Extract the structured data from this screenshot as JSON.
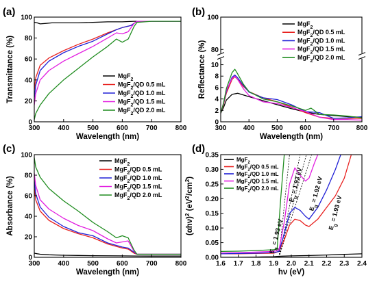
{
  "colors": {
    "MgF2": "#000000",
    "0.5": "#e8211f",
    "1.0": "#1f1fd6",
    "1.5": "#e21ee0",
    "2.0": "#1f8c1f"
  },
  "chart_data": [
    {
      "panel": "(a)",
      "type": "line",
      "xlabel": "Wavelength (nm)",
      "ylabel": "Transmittance (%)",
      "xlim": [
        300,
        800
      ],
      "ylim": [
        0,
        100
      ],
      "xticks": [
        "300",
        "400",
        "500",
        "600",
        "700",
        "800"
      ],
      "yticks": [
        "0",
        "20",
        "40",
        "60",
        "80",
        "100"
      ],
      "legend": "bottom-right",
      "series": [
        {
          "name": "MgF2",
          "label_main": "MgF",
          "label_sub": "2",
          "label_rest": "",
          "color_key": "MgF2",
          "x": [
            300,
            310,
            320,
            340,
            360,
            380,
            400,
            450,
            500,
            550,
            600,
            640,
            650,
            700,
            750,
            800
          ],
          "y": [
            95,
            94.5,
            93.5,
            94,
            94.5,
            94.5,
            94.5,
            94.5,
            95,
            95.5,
            95.5,
            96,
            96,
            96,
            96,
            96
          ]
        },
        {
          "name": "MgF2/QD 0.5 mL",
          "label_main": "MgF",
          "label_sub": "2",
          "label_rest": "/QD 0.5 mL",
          "color_key": "0.5",
          "x": [
            300,
            305,
            320,
            350,
            400,
            450,
            500,
            550,
            580,
            600,
            630,
            645,
            650,
            700,
            800
          ],
          "y": [
            30,
            42,
            54,
            61,
            68,
            74,
            79,
            85,
            88,
            90,
            92,
            95,
            96,
            96,
            96
          ]
        },
        {
          "name": "MgF2/QD 1.0 mL",
          "label_main": "MgF",
          "label_sub": "2",
          "label_rest": "/QD 1.0 mL",
          "color_key": "1.0",
          "x": [
            300,
            305,
            320,
            350,
            400,
            450,
            500,
            550,
            580,
            600,
            630,
            645,
            650,
            700,
            800
          ],
          "y": [
            22,
            35,
            49,
            58,
            66,
            72,
            77,
            84,
            88,
            90,
            92,
            95,
            96,
            96,
            96
          ]
        },
        {
          "name": "MgF2/QD 1.5 mL",
          "label_main": "MgF",
          "label_sub": "2",
          "label_rest": "/QD 1.5 mL",
          "color_key": "1.5",
          "x": [
            300,
            305,
            320,
            350,
            400,
            450,
            500,
            550,
            580,
            600,
            620,
            640,
            650,
            700,
            800
          ],
          "y": [
            16,
            27,
            40,
            49,
            58,
            65,
            72,
            80,
            85,
            84,
            86,
            94,
            96,
            96,
            96
          ]
        },
        {
          "name": "MgF2/QD 2.0 mL",
          "label_main": "MgF",
          "label_sub": "2",
          "label_rest": "/QD 2.0 mL",
          "color_key": "2.0",
          "x": [
            300,
            305,
            320,
            350,
            400,
            450,
            500,
            550,
            580,
            600,
            620,
            640,
            650,
            700,
            800
          ],
          "y": [
            2,
            8,
            16,
            27,
            40,
            51,
            62,
            72,
            79,
            76,
            79,
            91,
            95,
            96,
            96
          ]
        }
      ]
    },
    {
      "panel": "(b)",
      "type": "line",
      "xlabel": "Wavelength (nm)",
      "ylabel": "Reflectance (%)",
      "xlim": [
        300,
        800
      ],
      "ylim": [
        0,
        100
      ],
      "axis_break": [
        11,
        78
      ],
      "xticks": [
        "300",
        "400",
        "500",
        "600",
        "700",
        "800"
      ],
      "yticks": [
        "0",
        "2",
        "4",
        "6",
        "8",
        "10",
        "80",
        "100"
      ],
      "legend": "top-right",
      "series": [
        {
          "name": "MgF2",
          "label_main": "MgF",
          "label_sub": "2",
          "label_rest": "",
          "color_key": "MgF2",
          "x": [
            300,
            310,
            320,
            340,
            360,
            380,
            400,
            450,
            500,
            550,
            600,
            650,
            700,
            750,
            800
          ],
          "y": [
            1.5,
            2.5,
            3.8,
            4.8,
            5.0,
            4.7,
            4.4,
            3.7,
            3.0,
            2.3,
            1.7,
            1.3,
            1.1,
            0.9,
            0.8
          ]
        },
        {
          "name": "MgF2/QD 0.5 mL",
          "label_main": "MgF",
          "label_sub": "2",
          "label_rest": "/QD 0.5 mL",
          "color_key": "0.5",
          "x": [
            300,
            310,
            320,
            340,
            350,
            360,
            380,
            400,
            450,
            500,
            550,
            600,
            650,
            700,
            750,
            800
          ],
          "y": [
            1.5,
            3,
            5,
            7.4,
            7.9,
            7.4,
            6.2,
            5.3,
            4.2,
            3.5,
            2.6,
            1.6,
            0.8,
            0.6,
            0.6,
            0.6
          ]
        },
        {
          "name": "MgF2/QD 1.0 mL",
          "label_main": "MgF",
          "label_sub": "2",
          "label_rest": "/QD 1.0 mL",
          "color_key": "1.0",
          "x": [
            300,
            310,
            320,
            340,
            350,
            360,
            380,
            400,
            450,
            500,
            550,
            600,
            650,
            700,
            750,
            800
          ],
          "y": [
            1.5,
            3.2,
            5.3,
            7.8,
            8.2,
            7.7,
            6.4,
            5.2,
            4.2,
            3.9,
            3.0,
            1.8,
            1.6,
            0.6,
            0.7,
            0.9
          ]
        },
        {
          "name": "MgF2/QD 1.5 mL",
          "label_main": "MgF",
          "label_sub": "2",
          "label_rest": "/QD 1.5 mL",
          "color_key": "1.5",
          "x": [
            300,
            310,
            320,
            340,
            350,
            360,
            380,
            400,
            450,
            500,
            550,
            600,
            650,
            700,
            750,
            800
          ],
          "y": [
            1.5,
            3.3,
            5.5,
            7.6,
            8.0,
            7.4,
            5.8,
            4.6,
            3.5,
            3.2,
            2.5,
            1.8,
            0.8,
            0.4,
            0.4,
            0.3
          ]
        },
        {
          "name": "MgF2/QD 2.0 mL",
          "label_main": "MgF",
          "label_sub": "2",
          "label_rest": "/QD 2.0 mL",
          "color_key": "2.0",
          "x": [
            300,
            310,
            320,
            340,
            350,
            360,
            380,
            400,
            450,
            500,
            550,
            600,
            620,
            650,
            700,
            750,
            800
          ],
          "y": [
            1.5,
            3.3,
            5.8,
            8.6,
            9.2,
            8.4,
            6.6,
            5.3,
            4.0,
            3.5,
            2.8,
            2.0,
            2.4,
            1.3,
            1.2,
            1.0,
            0.7
          ]
        }
      ]
    },
    {
      "panel": "(c)",
      "type": "line",
      "xlabel": "Wavelength (nm)",
      "ylabel": "Absorbance (%)",
      "xlim": [
        300,
        800
      ],
      "ylim": [
        0,
        100
      ],
      "xticks": [
        "300",
        "400",
        "500",
        "600",
        "700",
        "800"
      ],
      "yticks": [
        "0",
        "20",
        "40",
        "60",
        "80",
        "100"
      ],
      "legend": "top-right",
      "series": [
        {
          "name": "MgF2",
          "label_main": "MgF",
          "label_sub": "2",
          "label_rest": "",
          "color_key": "MgF2",
          "x": [
            300,
            310,
            320,
            350,
            400,
            450,
            500,
            600,
            650,
            700,
            800
          ],
          "y": [
            4,
            3.5,
            3,
            2.5,
            2,
            1.8,
            1.6,
            1.4,
            1.3,
            1.2,
            1.2
          ]
        },
        {
          "name": "MgF2/QD 0.5 mL",
          "label_main": "MgF",
          "label_sub": "2",
          "label_rest": "/QD 0.5 mL",
          "color_key": "0.5",
          "x": [
            300,
            305,
            320,
            350,
            400,
            450,
            500,
            550,
            600,
            620,
            640,
            650,
            700,
            800
          ],
          "y": [
            68,
            56,
            45,
            36,
            28,
            23,
            19,
            13,
            9,
            8,
            4,
            3,
            3,
            3
          ]
        },
        {
          "name": "MgF2/QD 1.0 mL",
          "label_main": "MgF",
          "label_sub": "2",
          "label_rest": "/QD 1.0 mL",
          "color_key": "1.0",
          "x": [
            300,
            305,
            320,
            350,
            400,
            450,
            500,
            550,
            600,
            620,
            640,
            650,
            700,
            800
          ],
          "y": [
            76,
            62,
            49,
            39,
            30,
            24,
            21,
            14,
            10,
            9,
            5,
            3,
            3,
            3
          ]
        },
        {
          "name": "MgF2/QD 1.5 mL",
          "label_main": "MgF",
          "label_sub": "2",
          "label_rest": "/QD 1.5 mL",
          "color_key": "1.5",
          "x": [
            300,
            305,
            320,
            350,
            400,
            450,
            500,
            550,
            580,
            600,
            620,
            640,
            650,
            700,
            800
          ],
          "y": [
            82,
            70,
            56,
            47,
            38,
            31,
            26,
            18,
            14,
            15,
            16,
            6,
            3,
            3,
            3
          ]
        },
        {
          "name": "MgF2/QD 2.0 mL",
          "label_main": "MgF",
          "label_sub": "2",
          "label_rest": "/QD 2.0 mL",
          "color_key": "2.0",
          "x": [
            300,
            305,
            320,
            350,
            400,
            450,
            500,
            550,
            580,
            600,
            620,
            640,
            650,
            700,
            800
          ],
          "y": [
            97,
            88,
            78,
            67,
            55,
            45,
            34,
            25,
            19,
            21,
            19,
            7,
            3,
            3,
            3
          ]
        }
      ]
    },
    {
      "panel": "(d)",
      "type": "line",
      "xlabel": "hν (eV)",
      "ylabel_pre": "(αhν)",
      "ylabel_sup1": "2",
      "ylabel_mid": " (eV",
      "ylabel_sup2": "2",
      "ylabel_post": "/cm",
      "ylabel_sup3": "2",
      "ylabel_end": ")",
      "xlim": [
        1.6,
        2.4
      ],
      "ylim": [
        0,
        0.35
      ],
      "xticks": [
        "1.6",
        "1.7",
        "1.8",
        "1.9",
        "2.0",
        "2.1",
        "2.2",
        "2.3",
        "2.4"
      ],
      "yticks": [
        "0.00",
        "0.05",
        "0.10",
        "0.15",
        "0.20",
        "0.25",
        "0.30",
        "0.35"
      ],
      "legend": "top-left",
      "annotations": [
        {
          "pre": "E",
          "sub": "g",
          "post": " = 1.93 eV",
          "x": 1.925,
          "y": 0.07,
          "rotate": -75
        },
        {
          "pre": "E",
          "sub": "g",
          "post": " = 1.93 eV",
          "x": 2.035,
          "y": 0.245,
          "rotate": -75
        },
        {
          "pre": "E",
          "sub": "g",
          "post": " = 1.92 eV",
          "x": 2.15,
          "y": 0.215,
          "rotate": -75
        },
        {
          "pre": "E",
          "sub": "g",
          "post": " = 1.93 eV",
          "x": 2.26,
          "y": 0.15,
          "rotate": -75
        }
      ],
      "tangent_lines": [
        {
          "x": [
            1.93,
            1.99
          ]
        },
        {
          "x": [
            1.93,
            2.05
          ]
        },
        {
          "x": [
            1.93,
            2.085
          ]
        },
        {
          "x": [
            1.93,
            2.115
          ]
        }
      ],
      "series": [
        {
          "name": "MgF2",
          "label_main": "MgF",
          "label_sub": "2",
          "label_rest": "",
          "color_key": "MgF2",
          "x": [
            1.6,
            1.7,
            1.8,
            1.9,
            1.92,
            1.95,
            2.0,
            2.1,
            2.2,
            2.3,
            2.4
          ],
          "y": [
            0.0,
            0.0,
            0.001,
            0.002,
            0.003,
            0.004,
            0.005,
            0.006,
            0.008,
            0.01,
            0.012
          ]
        },
        {
          "name": "MgF2/QD 0.5 mL",
          "label_main": "MgF",
          "label_sub": "2",
          "label_rest": "/QD 0.5 mL",
          "color_key": "0.5",
          "x": [
            1.6,
            1.7,
            1.8,
            1.9,
            1.93,
            1.96,
            1.99,
            2.02,
            2.05,
            2.08,
            2.1,
            2.15,
            2.2,
            2.25,
            2.3,
            2.34
          ],
          "y": [
            0.012,
            0.012,
            0.013,
            0.014,
            0.02,
            0.06,
            0.11,
            0.13,
            0.125,
            0.11,
            0.105,
            0.13,
            0.17,
            0.21,
            0.27,
            0.35
          ]
        },
        {
          "name": "MgF2/QD 1.0 mL",
          "label_main": "MgF",
          "label_sub": "2",
          "label_rest": "/QD 1.0 mL",
          "color_key": "1.0",
          "x": [
            1.6,
            1.7,
            1.8,
            1.9,
            1.93,
            1.96,
            1.99,
            2.02,
            2.05,
            2.08,
            2.1,
            2.15,
            2.2,
            2.25,
            2.28
          ],
          "y": [
            0.012,
            0.013,
            0.014,
            0.016,
            0.02,
            0.08,
            0.15,
            0.17,
            0.16,
            0.14,
            0.13,
            0.17,
            0.23,
            0.3,
            0.35
          ]
        },
        {
          "name": "MgF2/QD 1.5 mL",
          "label_main": "MgF",
          "label_sub": "2",
          "label_rest": "/QD 1.5 mL",
          "color_key": "1.5",
          "x": [
            1.6,
            1.7,
            1.8,
            1.9,
            1.93,
            1.96,
            1.99,
            2.02,
            2.05,
            2.08,
            2.1,
            2.13,
            2.15
          ],
          "y": [
            0.015,
            0.016,
            0.018,
            0.02,
            0.025,
            0.12,
            0.25,
            0.305,
            0.28,
            0.26,
            0.27,
            0.32,
            0.35
          ]
        },
        {
          "name": "MgF2/QD 2.0 mL",
          "label_main": "MgF",
          "label_sub": "2",
          "label_rest": "/QD 2.0 mL",
          "color_key": "2.0",
          "x": [
            1.6,
            1.7,
            1.8,
            1.9,
            1.92,
            1.94,
            1.96
          ],
          "y": [
            0.02,
            0.021,
            0.023,
            0.026,
            0.03,
            0.2,
            0.35
          ]
        }
      ]
    }
  ]
}
